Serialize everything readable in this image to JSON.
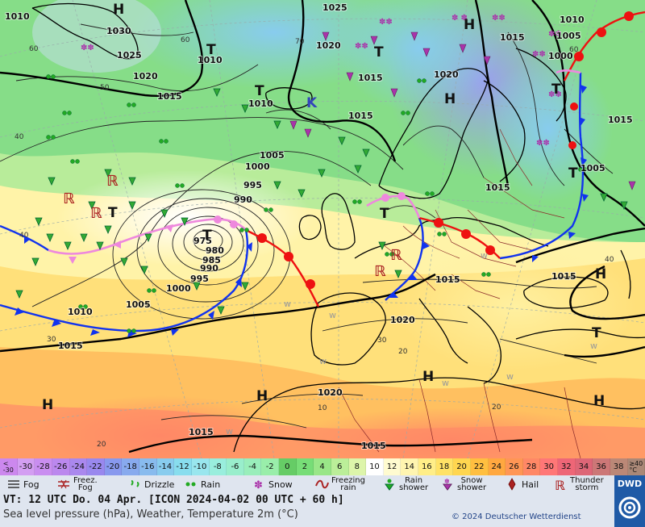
{
  "map": {
    "pressure_centers": [
      {
        "label": "H",
        "role": "high"
      },
      {
        "label": "H",
        "role": "high"
      },
      {
        "label": "H",
        "role": "high"
      },
      {
        "label": "H",
        "role": "high"
      },
      {
        "label": "H",
        "role": "high"
      },
      {
        "label": "H",
        "role": "high"
      },
      {
        "label": "H",
        "role": "high"
      },
      {
        "label": "H",
        "role": "high"
      },
      {
        "label": "T",
        "role": "low"
      },
      {
        "label": "T",
        "role": "low"
      },
      {
        "label": "T",
        "role": "low"
      },
      {
        "label": "T",
        "role": "low"
      },
      {
        "label": "T",
        "role": "low"
      },
      {
        "label": "T",
        "role": "low"
      },
      {
        "label": "T",
        "role": "low"
      },
      {
        "label": "T",
        "role": "low"
      },
      {
        "label": "T",
        "role": "low"
      },
      {
        "label": "K",
        "role": "cold"
      }
    ],
    "isobar_labels": [
      "1010",
      "1030",
      "1025",
      "1020",
      "1015",
      "1010",
      "1025",
      "1020",
      "1010",
      "1015",
      "1005",
      "1000",
      "995",
      "990",
      "975",
      "980",
      "985",
      "990",
      "995",
      "1000",
      "1005",
      "1010",
      "1015",
      "1015",
      "1020",
      "1015",
      "1010",
      "1005",
      "1000",
      "1005",
      "1015",
      "1015",
      "1015",
      "1020",
      "1020",
      "1015",
      "1015",
      "1015"
    ],
    "sst_labels": [
      "60",
      "60",
      "50",
      "40",
      "40",
      "30",
      "20",
      "70",
      "60",
      "40",
      "30",
      "20",
      "20",
      "10"
    ],
    "colors": {
      "warm_front": "#ee1111",
      "cold_front": "#1133ee",
      "occlusion": "#ee88dd",
      "isobar": "#222222",
      "coast": "#000000",
      "border": "#8b2a2a"
    }
  },
  "temperature_scale": {
    "cells": [
      {
        "label": "<\n-30",
        "color": "#cc88ee"
      },
      {
        "label": "-30",
        "color": "#d39ef2"
      },
      {
        "label": "-28",
        "color": "#c98ef0"
      },
      {
        "label": "-26",
        "color": "#bb88ee"
      },
      {
        "label": "-24",
        "color": "#aa88ee"
      },
      {
        "label": "-22",
        "color": "#9988ee"
      },
      {
        "label": "-20",
        "color": "#8899ee"
      },
      {
        "label": "-18",
        "color": "#88aaee"
      },
      {
        "label": "-16",
        "color": "#88bbee"
      },
      {
        "label": "-14",
        "color": "#88ccee"
      },
      {
        "label": "-12",
        "color": "#88ddee"
      },
      {
        "label": "-10",
        "color": "#99e6ee"
      },
      {
        "label": "-8",
        "color": "#99eedd"
      },
      {
        "label": "-6",
        "color": "#99eecc"
      },
      {
        "label": "-4",
        "color": "#99eebb"
      },
      {
        "label": "-2",
        "color": "#99eeaa"
      },
      {
        "label": "0",
        "color": "#66cc66"
      },
      {
        "label": "2",
        "color": "#77dd77"
      },
      {
        "label": "4",
        "color": "#99e688"
      },
      {
        "label": "6",
        "color": "#bbee99"
      },
      {
        "label": "8",
        "color": "#ddf5aa"
      },
      {
        "label": "10",
        "color": "#ffffff"
      },
      {
        "label": "12",
        "color": "#fffbd0"
      },
      {
        "label": "14",
        "color": "#fff5b0"
      },
      {
        "label": "16",
        "color": "#ffee88"
      },
      {
        "label": "18",
        "color": "#ffe266"
      },
      {
        "label": "20",
        "color": "#ffd650"
      },
      {
        "label": "22",
        "color": "#ffbf40"
      },
      {
        "label": "24",
        "color": "#ffa840"
      },
      {
        "label": "26",
        "color": "#ff9655"
      },
      {
        "label": "28",
        "color": "#ff8866"
      },
      {
        "label": "30",
        "color": "#ff7777"
      },
      {
        "label": "32",
        "color": "#ee6677"
      },
      {
        "label": "34",
        "color": "#dd6677"
      },
      {
        "label": "36",
        "color": "#cc7777"
      },
      {
        "label": "38",
        "color": "#bb8877"
      },
      {
        "label": "≥40\n°C",
        "color": "#aa8877"
      }
    ]
  },
  "legend": {
    "items": [
      {
        "label": "Fog",
        "icon": "fog-icon"
      },
      {
        "label": "Freez.\nFog",
        "icon": "freezing-fog-icon"
      },
      {
        "label": "Drizzle",
        "icon": "drizzle-icon"
      },
      {
        "label": "Rain",
        "icon": "rain-icon"
      },
      {
        "label": "Snow",
        "icon": "snow-icon"
      },
      {
        "label": "Freezing\nrain",
        "icon": "freezing-rain-icon"
      },
      {
        "label": "Rain\nshower",
        "icon": "rain-shower-icon"
      },
      {
        "label": "Snow\nshower",
        "icon": "snow-shower-icon"
      },
      {
        "label": "Hail",
        "icon": "hail-icon"
      },
      {
        "label": "Thunder\nstorm",
        "icon": "thunderstorm-icon"
      }
    ]
  },
  "footer": {
    "valid_time": "VT: 12 UTC Do.  04 Apr. [ICON 2024-04-02  00 UTC + 60 h]",
    "description": "Sea level pressure (hPa), Weather, Temperature 2m (°C)",
    "copyright": "© 2024 Deutscher Wetterdienst",
    "logo": "DWD"
  }
}
